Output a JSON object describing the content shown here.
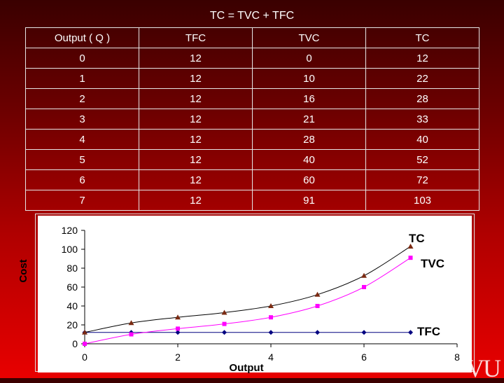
{
  "title": "TC = TVC + TFC",
  "table": {
    "headers": [
      "Output ( Q )",
      "TFC",
      "TVC",
      "TC"
    ],
    "rows": [
      [
        "0",
        "12",
        "0",
        "12"
      ],
      [
        "1",
        "12",
        "10",
        "22"
      ],
      [
        "2",
        "12",
        "16",
        "28"
      ],
      [
        "3",
        "12",
        "21",
        "33"
      ],
      [
        "4",
        "12",
        "28",
        "40"
      ],
      [
        "5",
        "12",
        "40",
        "52"
      ],
      [
        "6",
        "12",
        "60",
        "72"
      ],
      [
        "7",
        "12",
        "91",
        "103"
      ]
    ]
  },
  "logo_text": "VU",
  "chart_data": {
    "type": "line",
    "xlabel": "Output",
    "ylabel": "Cost",
    "xlim": [
      0,
      8
    ],
    "ylim": [
      0,
      120
    ],
    "xticks": [
      0,
      2,
      4,
      6,
      8
    ],
    "yticks": [
      0,
      20,
      40,
      60,
      80,
      100,
      120
    ],
    "grid": false,
    "x": [
      0,
      1,
      2,
      3,
      4,
      5,
      6,
      7
    ],
    "series": [
      {
        "name": "TC",
        "values": [
          12,
          22,
          28,
          33,
          40,
          52,
          72,
          103
        ],
        "color": "#000000",
        "marker": "triangle",
        "marker_color": "#7b2a12"
      },
      {
        "name": "TVC",
        "values": [
          0,
          10,
          16,
          21,
          28,
          40,
          60,
          91
        ],
        "color": "#ff00ff",
        "marker": "square",
        "marker_color": "#ff00ff"
      },
      {
        "name": "TFC",
        "values": [
          12,
          12,
          12,
          12,
          12,
          12,
          12,
          12
        ],
        "color": "#000080",
        "marker": "diamond",
        "marker_color": "#000080"
      }
    ]
  }
}
